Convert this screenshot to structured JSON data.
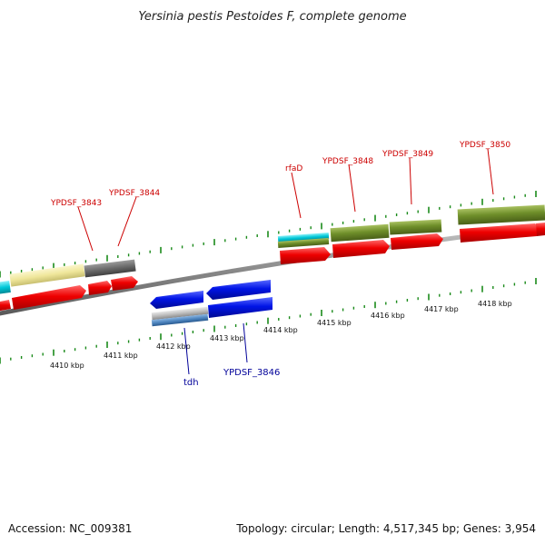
{
  "title": "Yersinia pestis Pestoides F, complete genome",
  "footer": {
    "accession": "Accession: NC_009381",
    "summary": "Topology: circular; Length: 4,517,345 bp; Genes: 3,954"
  },
  "colors": {
    "backbone": "#8a8a8a",
    "tick": "#1a8a1a",
    "cds": "#ee0000",
    "orange_yellow": "#efe69a",
    "cyan": "#00c8d8",
    "dark_gray": "#6b6b6b",
    "olive": "#6f8f2a",
    "blue": "#0010e0",
    "light_gray": "#bdbdbd",
    "top_label": "#cc0000",
    "bottom_label": "#000099"
  },
  "kbp_labels": [
    "4410 kbp",
    "4411 kbp",
    "4412 kbp",
    "4413 kbp",
    "4414 kbp",
    "4415 kbp",
    "4416 kbp",
    "4417 kbp",
    "4418 kbp"
  ],
  "top_gene_labels": [
    "YPDSF_3843",
    "YPDSF_3844",
    "rfaD",
    "YPDSF_3848",
    "YPDSF_3849",
    "YPDSF_3850"
  ],
  "bottom_gene_labels": [
    "tdh",
    "YPDSF_3846"
  ]
}
